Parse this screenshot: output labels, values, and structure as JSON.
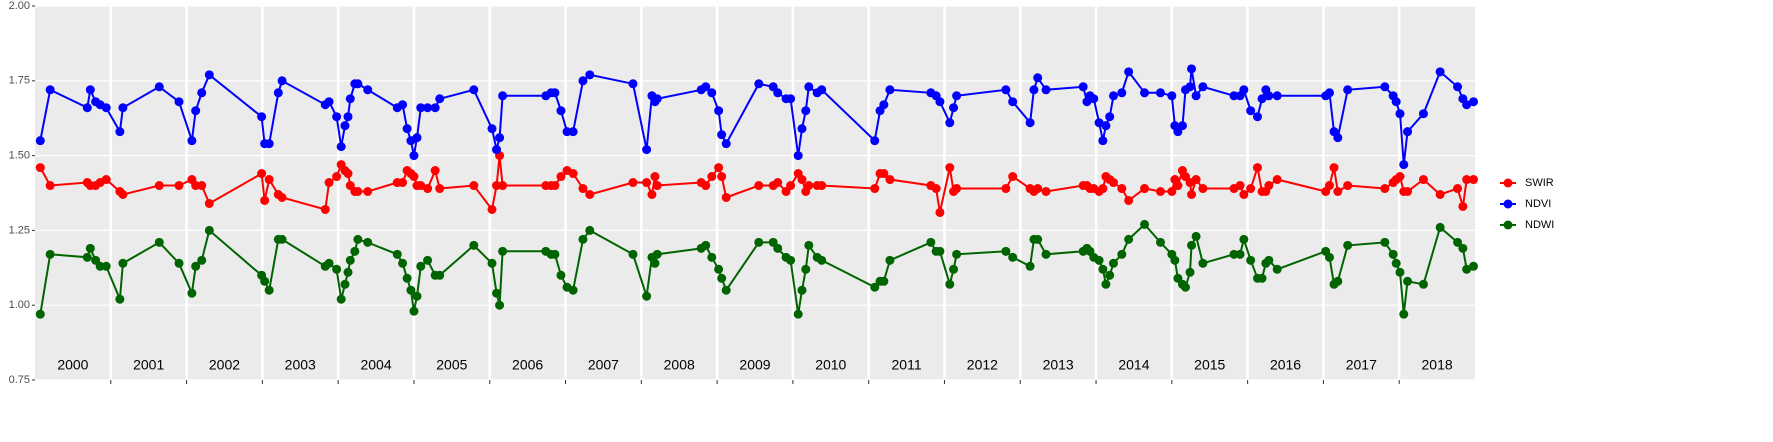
{
  "chart_data": {
    "type": "line",
    "xlim": [
      2000,
      2019
    ],
    "xticks": [
      2001,
      2002,
      2003,
      2004,
      2005,
      2006,
      2007,
      2008,
      2009,
      2010,
      2011,
      2012,
      2013,
      2014,
      2015,
      2016,
      2017,
      2018
    ],
    "year_labels": [
      2000,
      2001,
      2002,
      2003,
      2004,
      2005,
      2006,
      2007,
      2008,
      2009,
      2010,
      2011,
      2012,
      2013,
      2014,
      2015,
      2016,
      2017,
      2018
    ],
    "ylim": [
      0.75,
      2.0
    ],
    "yticks": [
      {
        "value": 0.75,
        "label": "0.75"
      },
      {
        "value": 1.0,
        "label": "1.00"
      },
      {
        "value": 1.25,
        "label": "1.25"
      },
      {
        "value": 1.5,
        "label": "1.50"
      },
      {
        "value": 1.75,
        "label": "1.75"
      },
      {
        "value": 2.0,
        "label": "2.00"
      }
    ],
    "grid": true,
    "legend": "right",
    "x": [
      2000.07,
      2000.2,
      2000.69,
      2000.73,
      2000.8,
      2000.86,
      2000.94,
      2001.12,
      2001.16,
      2001.64,
      2001.9,
      2002.07,
      2002.12,
      2002.2,
      2002.3,
      2002.99,
      2003.03,
      2003.09,
      2003.21,
      2003.26,
      2003.83,
      2003.88,
      2003.98,
      2004.04,
      2004.09,
      2004.13,
      2004.16,
      2004.22,
      2004.26,
      2004.39,
      2004.78,
      2004.85,
      2004.91,
      2004.96,
      2005.0,
      2005.04,
      2005.09,
      2005.18,
      2005.28,
      2005.34,
      2005.79,
      2006.03,
      2006.09,
      2006.13,
      2006.17,
      2006.74,
      2006.81,
      2006.86,
      2006.94,
      2007.02,
      2007.1,
      2007.23,
      2007.32,
      2007.89,
      2008.07,
      2008.14,
      2008.18,
      2008.21,
      2008.79,
      2008.85,
      2008.93,
      2009.02,
      2009.06,
      2009.12,
      2009.55,
      2009.74,
      2009.8,
      2009.91,
      2009.97,
      2010.07,
      2010.12,
      2010.17,
      2010.21,
      2010.32,
      2010.38,
      2011.08,
      2011.15,
      2011.2,
      2011.28,
      2011.82,
      2011.89,
      2011.94,
      2012.07,
      2012.12,
      2012.16,
      2012.81,
      2012.9,
      2013.13,
      2013.18,
      2013.23,
      2013.34,
      2013.83,
      2013.88,
      2013.92,
      2013.97,
      2014.04,
      2014.09,
      2014.13,
      2014.18,
      2014.23,
      2014.34,
      2014.43,
      2014.64,
      2014.85,
      2015.0,
      2015.04,
      2015.08,
      2015.14,
      2015.18,
      2015.24,
      2015.26,
      2015.32,
      2015.41,
      2015.82,
      2015.9,
      2015.95,
      2016.04,
      2016.13,
      2016.19,
      2016.24,
      2016.28,
      2016.39,
      2017.03,
      2017.08,
      2017.14,
      2017.19,
      2017.32,
      2017.81,
      2017.92,
      2017.96,
      2018.01,
      2018.06,
      2018.11,
      2018.32,
      2018.54,
      2018.77,
      2018.84,
      2018.89,
      2018.98
    ],
    "series": [
      {
        "name": "SWIR",
        "color": "#ff0000",
        "values": [
          1.46,
          1.4,
          1.41,
          1.4,
          1.4,
          1.41,
          1.42,
          1.38,
          1.37,
          1.4,
          1.4,
          1.42,
          1.4,
          1.4,
          1.34,
          1.44,
          1.35,
          1.42,
          1.37,
          1.36,
          1.32,
          1.41,
          1.43,
          1.47,
          1.45,
          1.44,
          1.4,
          1.38,
          1.38,
          1.38,
          1.41,
          1.41,
          1.45,
          1.44,
          1.43,
          1.4,
          1.4,
          1.39,
          1.45,
          1.39,
          1.4,
          1.32,
          1.4,
          1.5,
          1.4,
          1.4,
          1.4,
          1.4,
          1.43,
          1.45,
          1.44,
          1.39,
          1.37,
          1.41,
          1.41,
          1.37,
          1.43,
          1.4,
          1.41,
          1.4,
          1.43,
          1.46,
          1.43,
          1.36,
          1.4,
          1.4,
          1.41,
          1.38,
          1.4,
          1.44,
          1.42,
          1.38,
          1.4,
          1.4,
          1.4,
          1.39,
          1.44,
          1.44,
          1.42,
          1.4,
          1.39,
          1.31,
          1.46,
          1.38,
          1.39,
          1.39,
          1.43,
          1.39,
          1.38,
          1.39,
          1.38,
          1.4,
          1.4,
          1.39,
          1.39,
          1.38,
          1.39,
          1.43,
          1.42,
          1.41,
          1.39,
          1.35,
          1.39,
          1.38,
          1.38,
          1.42,
          1.4,
          1.45,
          1.43,
          1.41,
          1.37,
          1.42,
          1.39,
          1.39,
          1.4,
          1.37,
          1.39,
          1.46,
          1.38,
          1.38,
          1.4,
          1.42,
          1.38,
          1.4,
          1.46,
          1.38,
          1.4,
          1.39,
          1.41,
          1.42,
          1.43,
          1.38,
          1.38,
          1.42,
          1.37,
          1.39,
          1.33,
          1.42,
          1.42
        ]
      },
      {
        "name": "NDVI",
        "color": "#0000ff",
        "values": [
          1.55,
          1.72,
          1.66,
          1.72,
          1.68,
          1.67,
          1.66,
          1.58,
          1.66,
          1.73,
          1.68,
          1.55,
          1.65,
          1.71,
          1.77,
          1.63,
          1.54,
          1.54,
          1.71,
          1.75,
          1.67,
          1.68,
          1.63,
          1.53,
          1.6,
          1.63,
          1.69,
          1.74,
          1.74,
          1.72,
          1.66,
          1.67,
          1.59,
          1.55,
          1.5,
          1.56,
          1.66,
          1.66,
          1.66,
          1.69,
          1.72,
          1.59,
          1.52,
          1.56,
          1.7,
          1.7,
          1.71,
          1.71,
          1.65,
          1.58,
          1.58,
          1.75,
          1.77,
          1.74,
          1.52,
          1.7,
          1.68,
          1.69,
          1.72,
          1.73,
          1.71,
          1.65,
          1.57,
          1.54,
          1.74,
          1.73,
          1.71,
          1.69,
          1.69,
          1.5,
          1.59,
          1.65,
          1.73,
          1.71,
          1.72,
          1.55,
          1.65,
          1.67,
          1.72,
          1.71,
          1.7,
          1.68,
          1.61,
          1.66,
          1.7,
          1.72,
          1.68,
          1.61,
          1.72,
          1.76,
          1.72,
          1.73,
          1.68,
          1.7,
          1.69,
          1.61,
          1.55,
          1.6,
          1.63,
          1.7,
          1.71,
          1.78,
          1.71,
          1.71,
          1.7,
          1.6,
          1.58,
          1.6,
          1.72,
          1.73,
          1.79,
          1.7,
          1.73,
          1.7,
          1.7,
          1.72,
          1.65,
          1.63,
          1.69,
          1.72,
          1.7,
          1.7,
          1.7,
          1.71,
          1.58,
          1.56,
          1.72,
          1.73,
          1.7,
          1.68,
          1.64,
          1.47,
          1.58,
          1.64,
          1.78,
          1.73,
          1.69,
          1.67,
          1.68
        ]
      },
      {
        "name": "NDWI",
        "color": "#006400",
        "values": [
          0.97,
          1.17,
          1.16,
          1.19,
          1.15,
          1.13,
          1.13,
          1.02,
          1.14,
          1.21,
          1.14,
          1.04,
          1.13,
          1.15,
          1.25,
          1.1,
          1.08,
          1.05,
          1.22,
          1.22,
          1.13,
          1.14,
          1.12,
          1.02,
          1.07,
          1.11,
          1.15,
          1.18,
          1.22,
          1.21,
          1.17,
          1.14,
          1.09,
          1.05,
          0.98,
          1.03,
          1.13,
          1.15,
          1.1,
          1.1,
          1.2,
          1.14,
          1.04,
          1.0,
          1.18,
          1.18,
          1.17,
          1.17,
          1.1,
          1.06,
          1.05,
          1.22,
          1.25,
          1.17,
          1.03,
          1.16,
          1.14,
          1.17,
          1.19,
          1.2,
          1.16,
          1.12,
          1.09,
          1.05,
          1.21,
          1.21,
          1.19,
          1.16,
          1.15,
          0.97,
          1.05,
          1.12,
          1.2,
          1.16,
          1.15,
          1.06,
          1.08,
          1.08,
          1.15,
          1.21,
          1.18,
          1.18,
          1.07,
          1.12,
          1.17,
          1.18,
          1.16,
          1.13,
          1.22,
          1.22,
          1.17,
          1.18,
          1.19,
          1.18,
          1.16,
          1.15,
          1.12,
          1.07,
          1.1,
          1.14,
          1.17,
          1.22,
          1.27,
          1.21,
          1.17,
          1.15,
          1.09,
          1.07,
          1.06,
          1.11,
          1.2,
          1.23,
          1.14,
          1.17,
          1.17,
          1.22,
          1.15,
          1.09,
          1.09,
          1.14,
          1.15,
          1.12,
          1.18,
          1.16,
          1.07,
          1.08,
          1.2,
          1.21,
          1.17,
          1.14,
          1.11,
          0.97,
          1.08,
          1.07,
          1.26,
          1.21,
          1.19,
          1.12,
          1.13
        ]
      }
    ]
  }
}
